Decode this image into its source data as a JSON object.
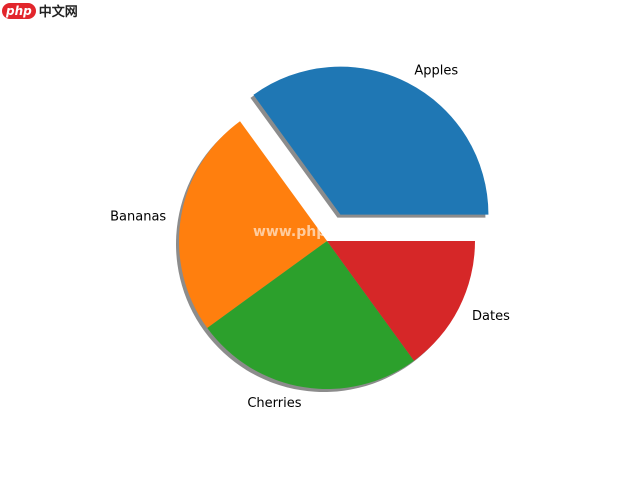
{
  "chart_data": {
    "type": "pie",
    "labels": [
      "Apples",
      "Bananas",
      "Cherries",
      "Dates"
    ],
    "values": [
      35,
      25,
      25,
      15
    ],
    "colors": [
      "#1f77b4",
      "#ff7f0e",
      "#2ca02c",
      "#d62728"
    ],
    "explode": [
      0.2,
      0,
      0,
      0
    ],
    "shadow": true,
    "startangle": 0
  },
  "watermark": {
    "logo_php": "php",
    "logo_cn": "中文网",
    "url": "www.php.cn"
  }
}
